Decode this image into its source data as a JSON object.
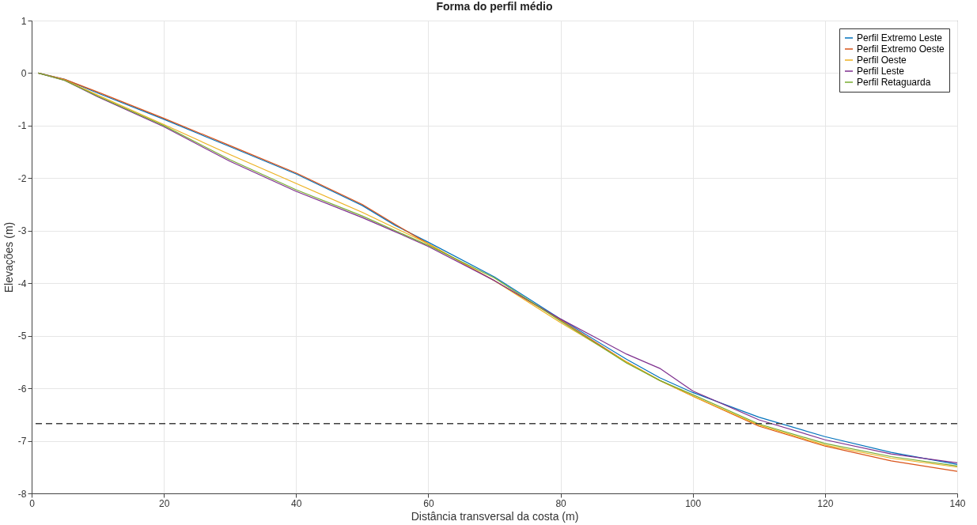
{
  "chart_data": {
    "type": "line",
    "title": "Forma do perfil médio",
    "xlabel": "Distância transversal da costa (m)",
    "ylabel": "Elevações (m)",
    "x": [
      1,
      5,
      10,
      20,
      30,
      40,
      50,
      55,
      60,
      70,
      80,
      90,
      95,
      100,
      110,
      120,
      130,
      140
    ],
    "series": [
      {
        "name": "Perfil Extremo Leste",
        "color": "#0072bd",
        "values": [
          0,
          -0.12,
          -0.38,
          -0.88,
          -1.4,
          -1.92,
          -2.52,
          -2.9,
          -3.22,
          -3.88,
          -4.68,
          -5.45,
          -5.8,
          -6.08,
          -6.55,
          -6.92,
          -7.22,
          -7.45
        ]
      },
      {
        "name": "Perfil Extremo Oeste",
        "color": "#d95319",
        "values": [
          0,
          -0.12,
          -0.36,
          -0.86,
          -1.38,
          -1.9,
          -2.5,
          -2.88,
          -3.25,
          -3.95,
          -4.7,
          -5.5,
          -5.85,
          -6.15,
          -6.72,
          -7.1,
          -7.38,
          -7.58
        ]
      },
      {
        "name": "Perfil Oeste",
        "color": "#edb120",
        "values": [
          0,
          -0.13,
          -0.42,
          -0.98,
          -1.55,
          -2.1,
          -2.65,
          -2.95,
          -3.25,
          -3.95,
          -4.75,
          -5.5,
          -5.85,
          -6.15,
          -6.7,
          -7.08,
          -7.33,
          -7.5
        ]
      },
      {
        "name": "Perfil Leste",
        "color": "#7e2f8e",
        "values": [
          0,
          -0.14,
          -0.45,
          -1.02,
          -1.68,
          -2.25,
          -2.75,
          -3.02,
          -3.3,
          -3.95,
          -4.68,
          -5.35,
          -5.62,
          -6.05,
          -6.6,
          -6.98,
          -7.25,
          -7.42
        ]
      },
      {
        "name": "Perfil Retaguarda",
        "color": "#77ac30",
        "values": [
          0,
          -0.14,
          -0.44,
          -1.0,
          -1.65,
          -2.22,
          -2.72,
          -3.0,
          -3.28,
          -3.9,
          -4.72,
          -5.52,
          -5.85,
          -6.12,
          -6.68,
          -7.05,
          -7.3,
          -7.48
        ]
      }
    ],
    "xlim": [
      0,
      140
    ],
    "xticks": [
      0,
      20,
      40,
      60,
      80,
      100,
      120,
      140
    ],
    "ylim": [
      -8,
      1
    ],
    "yticks": [
      -8,
      -7,
      -6,
      -5,
      -4,
      -3,
      -2,
      -1,
      0,
      1
    ],
    "ref_lines": [
      {
        "axis": "y",
        "value": -6.67,
        "color": "#404040",
        "line_style": "dashed"
      }
    ],
    "grid": true,
    "legend": "top right",
    "line_style": "solid",
    "marker": "none"
  }
}
